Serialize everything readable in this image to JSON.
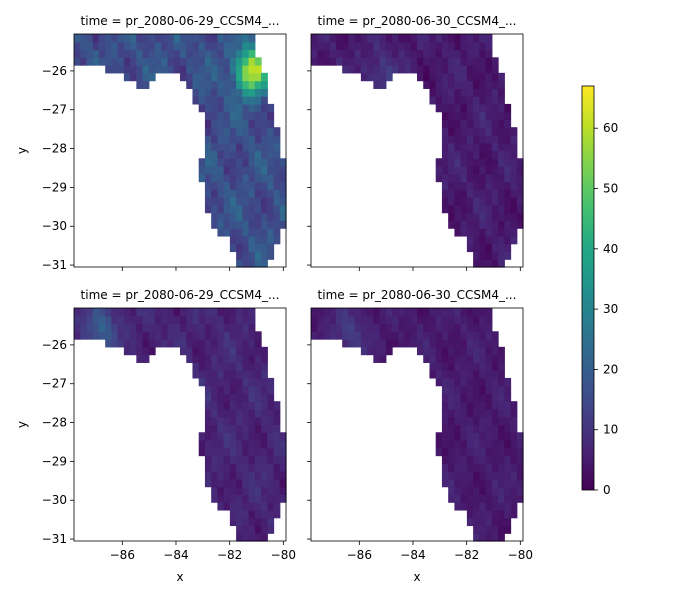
{
  "chart_data": {
    "type": "heatmap",
    "colormap": "viridis",
    "colorbar": {
      "min": 0,
      "max": 67,
      "ticks": [
        0,
        10,
        20,
        30,
        40,
        50,
        60
      ]
    },
    "xlabel": "x",
    "ylabel": "y",
    "xlim": [
      -87.8,
      -79.9
    ],
    "ylim": [
      -31.05,
      -25.05
    ],
    "xticks": [
      -86,
      -84,
      -82,
      -80
    ],
    "yticks": [
      -26,
      -27,
      -28,
      -29,
      -30,
      -31
    ],
    "panels": [
      {
        "title": "time = pr_2080-06-29_CCSM4_...",
        "row": 0,
        "col": 0,
        "base": 16,
        "spread": 9,
        "peak": 62,
        "peak_x": -81.2,
        "peak_y": -26.0
      },
      {
        "title": "time = pr_2080-06-30_CCSM4_...",
        "row": 0,
        "col": 1,
        "base": 5,
        "spread": 5,
        "peak": 12,
        "peak_x": -85.2,
        "peak_y": -26.1
      },
      {
        "title": "time = pr_2080-06-29_CCSM4_...",
        "row": 1,
        "col": 0,
        "base": 7,
        "spread": 5,
        "peak": 20,
        "peak_x": -86.8,
        "peak_y": -25.6
      },
      {
        "title": "time = pr_2080-06-30_CCSM4_...",
        "row": 1,
        "col": 1,
        "base": 5,
        "spread": 4,
        "peak": 12,
        "peak_x": -86.4,
        "peak_y": -25.7
      }
    ]
  }
}
